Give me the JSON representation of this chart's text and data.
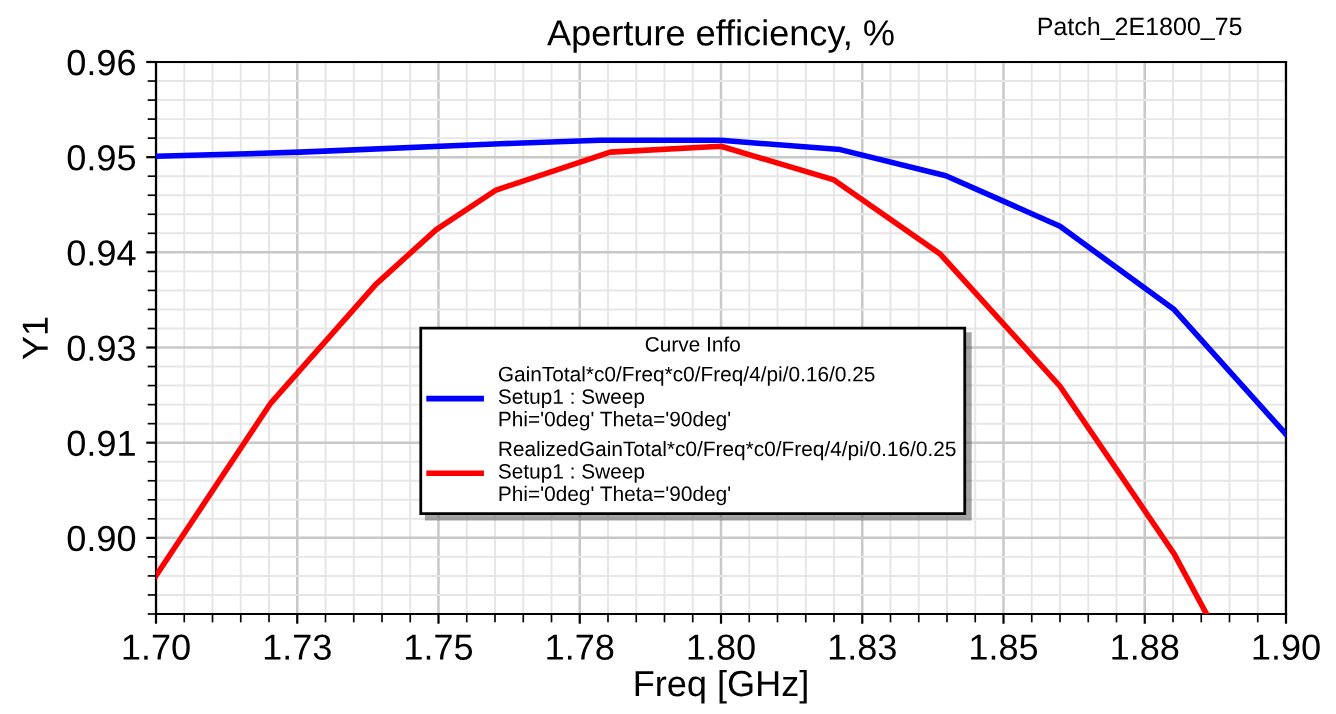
{
  "chart_data": {
    "type": "line",
    "title": "Aperture efficiency, %",
    "xlabel": "Freq [GHz]",
    "ylabel": "Y1",
    "legend_title": "Curve Info",
    "annotations": [
      "Patch_2E1800_75"
    ],
    "series": [
      {
        "name": "GainTotal*c0/Freq*c0/Freq/4/pi/0.16/0.25\nSetup1 : Sweep\nPhi='0deg' Theta='90deg'",
        "color": "#0000ff",
        "x": [
          1.7,
          1.7255,
          1.7609,
          1.7786,
          1.8,
          1.8211,
          1.8398,
          1.86,
          1.8802,
          1.9
        ],
        "values": [
          0.9488,
          0.9493,
          0.9503,
          0.9507,
          0.9507,
          0.9496,
          0.9465,
          0.9405,
          0.9306,
          0.9158
        ]
      },
      {
        "name": "RealizedGainTotal*c0/Freq*c0/Freq/4/pi/0.16/0.25\nSetup1 : Sweep\nPhi='0deg' Theta='90deg'",
        "color": "#ff0000",
        "x": [
          1.7,
          1.7202,
          1.7389,
          1.7496,
          1.7602,
          1.7804,
          1.8,
          1.82,
          1.8388,
          1.86,
          1.8802,
          1.8859
        ],
        "values": [
          0.899,
          0.9194,
          0.9336,
          0.9401,
          0.9448,
          0.9493,
          0.95,
          0.946,
          0.9372,
          0.9215,
          0.9016,
          0.8945
        ]
      }
    ],
    "xlim": [
      1.7,
      1.9
    ],
    "xticks": [
      {
        "value": 1.7,
        "label": "1.70"
      },
      {
        "value": 1.725,
        "label": "1.73"
      },
      {
        "value": 1.75,
        "label": "1.75"
      },
      {
        "value": 1.775,
        "label": "1.78"
      },
      {
        "value": 1.8,
        "label": "1.80"
      },
      {
        "value": 1.825,
        "label": "1.83"
      },
      {
        "value": 1.85,
        "label": "1.85"
      },
      {
        "value": 1.875,
        "label": "1.88"
      },
      {
        "value": 1.9,
        "label": "1.90"
      }
    ],
    "ylim": [
      0.8945,
      0.96
    ],
    "yticks": [
      {
        "value": 0.96,
        "label": "0.96"
      },
      {
        "value": 0.9487,
        "label": "0.95"
      },
      {
        "value": 0.9374,
        "label": "0.94"
      },
      {
        "value": 0.9261,
        "label": "0.93"
      },
      {
        "value": 0.9148,
        "label": "0.91"
      },
      {
        "value": 0.9035,
        "label": "0.90"
      }
    ],
    "grid": true,
    "legend": "center",
    "marker": "none",
    "line_style": "solid"
  }
}
